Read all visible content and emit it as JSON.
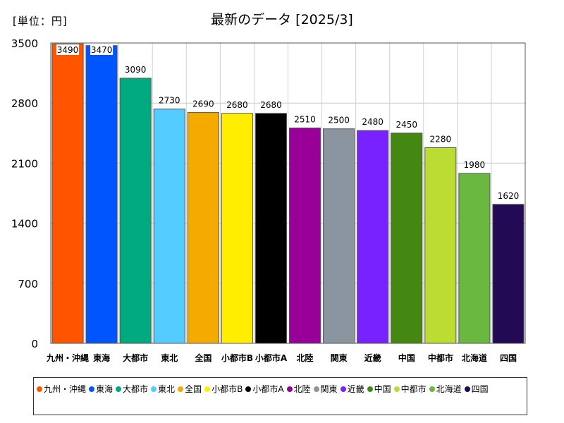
{
  "unit_label": "[単位：円]",
  "chart_data": {
    "type": "bar",
    "title": "最新のデータ [2025/3]",
    "xlabel": "",
    "ylabel": "",
    "ylim": [
      0,
      3500
    ],
    "yticks": [
      "0",
      "700",
      "1400",
      "2100",
      "2800",
      "3500"
    ],
    "grid": true,
    "legend_position": "bottom",
    "categories": [
      "九州・沖縄",
      "東海",
      "大都市",
      "東北",
      "全国",
      "小都市B",
      "小都市A",
      "北陸",
      "関東",
      "近畿",
      "中国",
      "中都市",
      "北海道",
      "四国"
    ],
    "values": [
      3490,
      3470,
      3090,
      2730,
      2690,
      2680,
      2680,
      2510,
      2500,
      2480,
      2450,
      2280,
      1980,
      1620
    ],
    "colors": [
      "#ff5500",
      "#0055ff",
      "#00aa7f",
      "#55ccff",
      "#f5aa00",
      "#ffee00",
      "#000000",
      "#990099",
      "#8a95a0",
      "#7722ff",
      "#448811",
      "#bbdd33",
      "#6ab840",
      "#220a55"
    ]
  }
}
